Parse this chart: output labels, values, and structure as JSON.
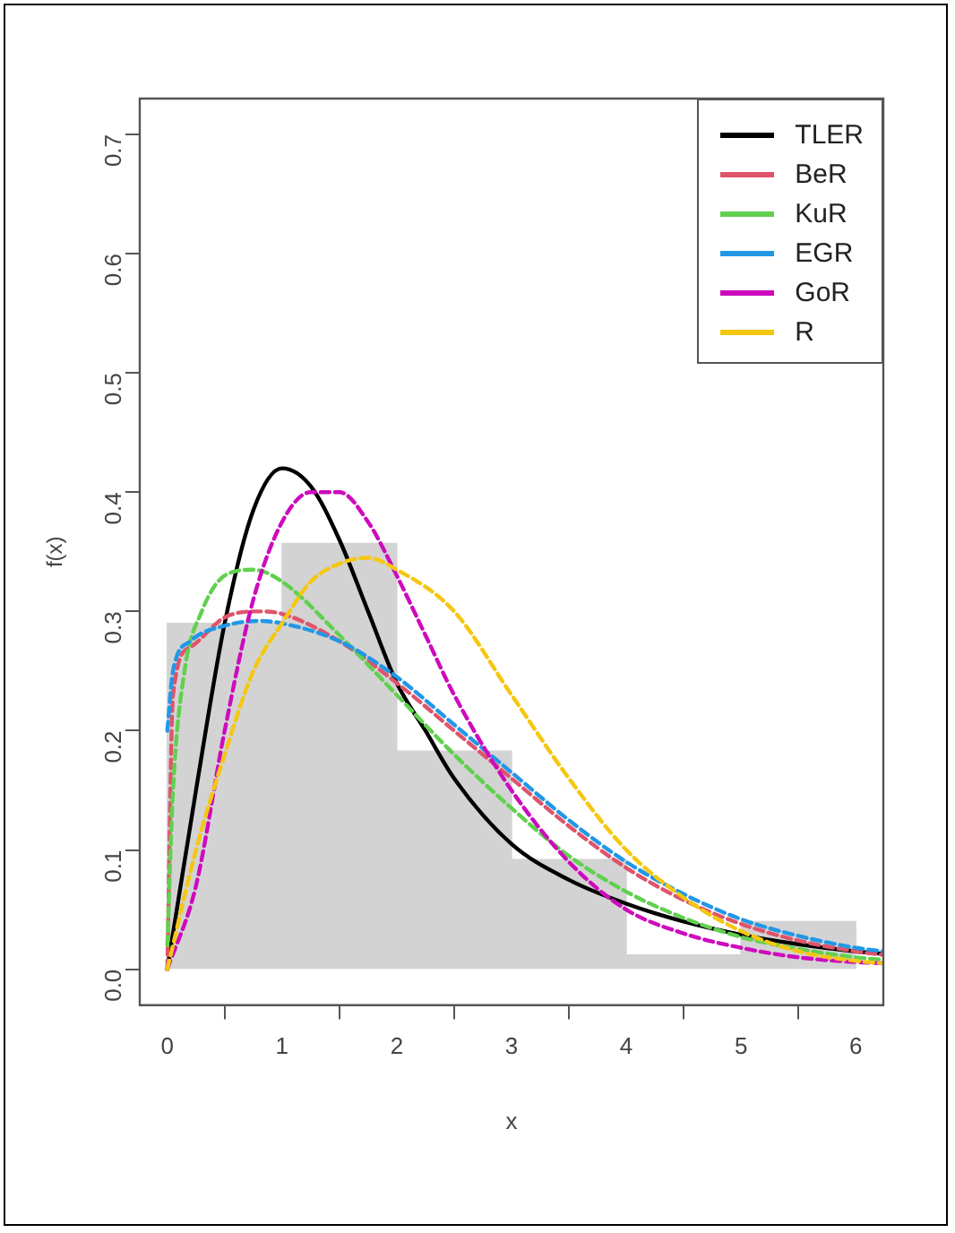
{
  "chart_data": {
    "type": "histogram",
    "xlabel": "x",
    "ylabel": "f(x)",
    "bins": [
      0,
      1,
      2,
      3,
      4,
      5,
      6
    ],
    "values": [
      0.29,
      0.357,
      0.183,
      0.092,
      0.012,
      0.04
    ],
    "color": "#d3d3d3",
    "xlim": [
      -0.24,
      6.24
    ],
    "ylim": [
      -0.03,
      0.73
    ],
    "xticks": [
      0,
      1,
      2,
      3,
      4,
      5,
      6
    ],
    "yticks": [
      {
        "value": 0,
        "label": "0.0"
      },
      {
        "value": 0.1,
        "label": "0.1"
      },
      {
        "value": 0.2,
        "label": "0.2"
      },
      {
        "value": 0.3,
        "label": "0.3"
      },
      {
        "value": 0.4,
        "label": "0.4"
      },
      {
        "value": 0.5,
        "label": "0.5"
      },
      {
        "value": 0.6,
        "label": "0.6"
      },
      {
        "value": 0.7,
        "label": "0.7"
      }
    ],
    "grid": false,
    "legend": "top right",
    "series": [
      {
        "name": "TLER",
        "type": "line",
        "color": "#000000",
        "line_style": "solid",
        "x": [
          0,
          0.25,
          0.5,
          0.75,
          1,
          1.25,
          1.5,
          1.75,
          2,
          2.25,
          2.5,
          3,
          3.5,
          4,
          4.5,
          5,
          5.5,
          6,
          6.24
        ],
        "values": [
          0,
          0.15,
          0.29,
          0.385,
          0.42,
          0.405,
          0.36,
          0.3,
          0.24,
          0.2,
          0.16,
          0.105,
          0.075,
          0.055,
          0.04,
          0.029,
          0.021,
          0.015,
          0.013
        ]
      },
      {
        "name": "BeR",
        "type": "line",
        "color": "#df536b",
        "line_style": "dashed",
        "x": [
          0,
          0.05,
          0.2,
          0.5,
          0.8,
          1,
          1.5,
          2,
          2.5,
          3,
          3.5,
          4,
          4.5,
          5,
          5.5,
          6,
          6.24
        ],
        "values": [
          0,
          0.23,
          0.27,
          0.295,
          0.3,
          0.298,
          0.275,
          0.24,
          0.2,
          0.16,
          0.12,
          0.085,
          0.058,
          0.038,
          0.024,
          0.015,
          0.012
        ]
      },
      {
        "name": "KuR",
        "type": "line",
        "color": "#61d04f",
        "line_style": "dashed",
        "x": [
          0,
          0.05,
          0.15,
          0.3,
          0.5,
          0.75,
          1,
          1.5,
          2,
          2.5,
          3,
          3.5,
          4,
          4.5,
          5,
          5.5,
          6,
          6.24
        ],
        "values": [
          0.02,
          0.15,
          0.25,
          0.3,
          0.33,
          0.335,
          0.325,
          0.28,
          0.23,
          0.18,
          0.135,
          0.095,
          0.065,
          0.043,
          0.027,
          0.017,
          0.01,
          0.008
        ]
      },
      {
        "name": "EGR",
        "type": "line",
        "color": "#2297e6",
        "line_style": "dashed",
        "x": [
          0,
          0.05,
          0.2,
          0.5,
          0.8,
          1,
          1.5,
          2,
          2.5,
          3,
          3.5,
          4,
          4.5,
          5,
          5.5,
          6,
          6.24
        ],
        "values": [
          0.2,
          0.25,
          0.275,
          0.288,
          0.292,
          0.29,
          0.275,
          0.245,
          0.205,
          0.165,
          0.125,
          0.09,
          0.063,
          0.042,
          0.028,
          0.018,
          0.015
        ]
      },
      {
        "name": "GoR",
        "type": "line",
        "color": "#cd0bbc",
        "line_style": "dashed",
        "x": [
          0,
          0.25,
          0.5,
          0.75,
          1,
          1.25,
          1.5,
          1.75,
          2,
          2.25,
          2.5,
          3,
          3.5,
          4,
          4.5,
          5,
          5.5,
          6,
          6.24
        ],
        "values": [
          0,
          0.07,
          0.2,
          0.31,
          0.375,
          0.4,
          0.4,
          0.375,
          0.33,
          0.28,
          0.23,
          0.15,
          0.09,
          0.05,
          0.03,
          0.018,
          0.01,
          0.006,
          0.005
        ]
      },
      {
        "name": "R",
        "type": "line",
        "color": "#f5c710",
        "line_style": "dashed",
        "x": [
          0,
          0.25,
          0.5,
          0.75,
          1,
          1.25,
          1.5,
          1.75,
          2,
          2.5,
          3,
          3.5,
          4,
          4.5,
          5,
          5.5,
          6,
          6.24
        ],
        "values": [
          0,
          0.1,
          0.18,
          0.25,
          0.29,
          0.325,
          0.34,
          0.345,
          0.335,
          0.3,
          0.23,
          0.16,
          0.1,
          0.06,
          0.032,
          0.015,
          0.007,
          0.005
        ]
      }
    ]
  }
}
